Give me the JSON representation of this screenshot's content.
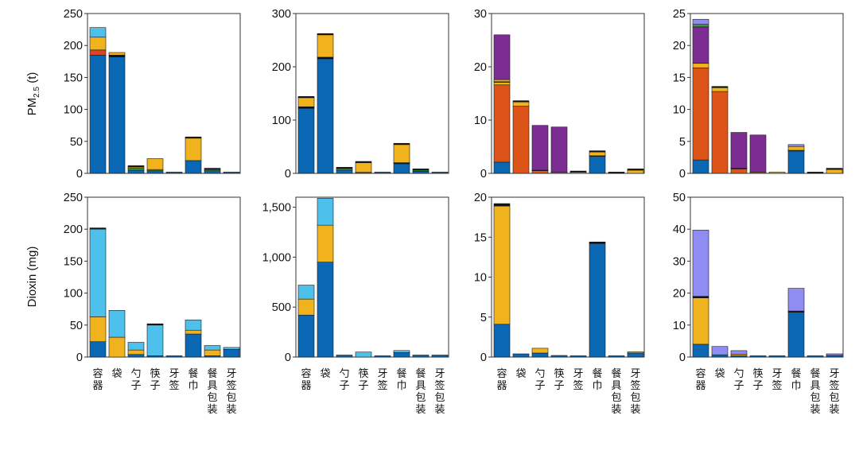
{
  "colors": {
    "dark_blue": "#0a67b3",
    "light_blue": "#4ec0ec",
    "orange": "#f0b21d",
    "red_orange": "#dd5418",
    "red": "#d9452b",
    "green": "#3d9a3a",
    "purple": "#7c2d92",
    "lavender": "#8f8df2",
    "black": "#111111"
  },
  "y_labels": {
    "row1_pre": "PM",
    "row1_sub": "2.5",
    "row1_post": " (t)",
    "row2": "Dioxin (mg)"
  },
  "categories": [
    "容器",
    "袋",
    "勺子",
    "筷子",
    "牙签",
    "餐巾",
    "餐具包装",
    "牙签包装"
  ],
  "chart_data": [
    {
      "type": "bar",
      "stacked": true,
      "row": 1,
      "col": 1,
      "ylim": [
        0,
        250
      ],
      "yticks": [
        "0",
        "50",
        "100",
        "150",
        "200",
        "250"
      ],
      "ytick_values": [
        0,
        50,
        100,
        150,
        200,
        250
      ],
      "stacks": [
        [
          [
            "dark_blue",
            185
          ],
          [
            "red",
            8
          ],
          [
            "orange",
            20
          ],
          [
            "light_blue",
            15
          ]
        ],
        [
          [
            "dark_blue",
            182
          ],
          [
            "black",
            3
          ],
          [
            "orange",
            4
          ]
        ],
        [
          [
            "dark_blue",
            5
          ],
          [
            "green",
            3
          ],
          [
            "orange",
            2
          ],
          [
            "black",
            1
          ]
        ],
        [
          [
            "dark_blue",
            4
          ],
          [
            "green",
            2
          ],
          [
            "orange",
            17
          ]
        ],
        [
          [
            "dark_blue",
            1
          ]
        ],
        [
          [
            "dark_blue",
            20
          ],
          [
            "orange",
            35
          ],
          [
            "black",
            1
          ]
        ],
        [
          [
            "dark_blue",
            4
          ],
          [
            "green",
            2
          ],
          [
            "black",
            1
          ]
        ],
        [
          [
            "dark_blue",
            1
          ]
        ]
      ]
    },
    {
      "type": "bar",
      "stacked": true,
      "row": 1,
      "col": 2,
      "ylim": [
        0,
        300
      ],
      "yticks": [
        "0",
        "100",
        "200",
        "300"
      ],
      "ytick_values": [
        0,
        100,
        200,
        300
      ],
      "stacks": [
        [
          [
            "dark_blue",
            122
          ],
          [
            "black",
            3
          ],
          [
            "orange",
            17
          ],
          [
            "black",
            2
          ]
        ],
        [
          [
            "dark_blue",
            215
          ],
          [
            "black",
            3
          ],
          [
            "orange",
            42
          ],
          [
            "black",
            2
          ]
        ],
        [
          [
            "dark_blue",
            6
          ],
          [
            "green",
            3
          ],
          [
            "black",
            2
          ]
        ],
        [
          [
            "dark_blue",
            2
          ],
          [
            "orange",
            18
          ],
          [
            "black",
            1
          ]
        ],
        [
          [
            "dark_blue",
            1
          ]
        ],
        [
          [
            "dark_blue",
            18
          ],
          [
            "black",
            2
          ],
          [
            "orange",
            34
          ],
          [
            "black",
            1
          ]
        ],
        [
          [
            "dark_blue",
            4
          ],
          [
            "green",
            2
          ],
          [
            "black",
            1
          ]
        ],
        [
          [
            "dark_blue",
            1
          ]
        ]
      ]
    },
    {
      "type": "bar",
      "stacked": true,
      "row": 1,
      "col": 3,
      "ylim": [
        0,
        30
      ],
      "yticks": [
        "0",
        "10",
        "20",
        "30"
      ],
      "ytick_values": [
        0,
        10,
        20,
        30
      ],
      "stacks": [
        [
          [
            "dark_blue",
            2.1
          ],
          [
            "red_orange",
            14.5
          ],
          [
            "orange",
            0.5
          ],
          [
            "black",
            0.1
          ],
          [
            "orange",
            0.4
          ],
          [
            "purple",
            8.4
          ]
        ],
        [
          [
            "red_orange",
            12.6
          ],
          [
            "orange",
            0.8
          ],
          [
            "black",
            0.1
          ]
        ],
        [
          [
            "red_orange",
            0.5
          ],
          [
            "black",
            0.1
          ],
          [
            "purple",
            8.4
          ]
        ],
        [
          [
            "red_orange",
            0.2
          ],
          [
            "purple",
            8.5
          ]
        ],
        [
          [
            "orange",
            0.2
          ],
          [
            "black",
            0.1
          ]
        ],
        [
          [
            "dark_blue",
            3.2
          ],
          [
            "black",
            0.1
          ],
          [
            "orange",
            0.7
          ],
          [
            "black",
            0.1
          ]
        ],
        [
          [
            "black",
            0.1
          ]
        ],
        [
          [
            "orange",
            0.6
          ],
          [
            "black",
            0.1
          ]
        ]
      ]
    },
    {
      "type": "bar",
      "stacked": true,
      "row": 1,
      "col": 4,
      "ylim": [
        0,
        25
      ],
      "yticks": [
        "0",
        "5",
        "10",
        "15",
        "20",
        "25"
      ],
      "ytick_values": [
        0,
        5,
        10,
        15,
        20,
        25
      ],
      "stacks": [
        [
          [
            "dark_blue",
            2.1
          ],
          [
            "red_orange",
            14.4
          ],
          [
            "orange",
            0.7
          ],
          [
            "purple",
            5.7
          ],
          [
            "green",
            0.4
          ],
          [
            "lavender",
            0.8
          ]
        ],
        [
          [
            "red_orange",
            12.8
          ],
          [
            "orange",
            0.6
          ],
          [
            "black",
            0.1
          ]
        ],
        [
          [
            "red_orange",
            0.7
          ],
          [
            "black",
            0.1
          ],
          [
            "purple",
            5.6
          ]
        ],
        [
          [
            "red_orange",
            0.2
          ],
          [
            "purple",
            5.8
          ]
        ],
        [
          [
            "orange",
            0.2
          ]
        ],
        [
          [
            "dark_blue",
            3.5
          ],
          [
            "black",
            0.1
          ],
          [
            "orange",
            0.6
          ],
          [
            "lavender",
            0.3
          ]
        ],
        [
          [
            "black",
            0.1
          ]
        ],
        [
          [
            "orange",
            0.6
          ],
          [
            "black",
            0.1
          ]
        ]
      ]
    },
    {
      "type": "bar",
      "stacked": true,
      "row": 2,
      "col": 1,
      "ylim": [
        0,
        250
      ],
      "yticks": [
        "0",
        "50",
        "100",
        "150",
        "200",
        "250"
      ],
      "ytick_values": [
        0,
        50,
        100,
        150,
        200,
        250
      ],
      "stacks": [
        [
          [
            "dark_blue",
            24
          ],
          [
            "orange",
            39
          ],
          [
            "light_blue",
            137
          ],
          [
            "black",
            2
          ]
        ],
        [
          [
            "orange",
            31
          ],
          [
            "light_blue",
            42
          ]
        ],
        [
          [
            "dark_blue",
            4
          ],
          [
            "orange",
            7
          ],
          [
            "light_blue",
            12
          ]
        ],
        [
          [
            "dark_blue",
            2
          ],
          [
            "light_blue",
            48
          ],
          [
            "black",
            1
          ]
        ],
        [
          [
            "dark_blue",
            1
          ]
        ],
        [
          [
            "dark_blue",
            36
          ],
          [
            "orange",
            6
          ],
          [
            "light_blue",
            16
          ]
        ],
        [
          [
            "dark_blue",
            2
          ],
          [
            "orange",
            9
          ],
          [
            "light_blue",
            7
          ]
        ],
        [
          [
            "dark_blue",
            12
          ],
          [
            "light_blue",
            3
          ]
        ]
      ]
    },
    {
      "type": "bar",
      "stacked": true,
      "row": 2,
      "col": 2,
      "ylim": [
        0,
        1600
      ],
      "yticks": [
        "0",
        "500",
        "1,000",
        "1,500"
      ],
      "ytick_values": [
        0,
        500,
        1000,
        1500
      ],
      "stacks": [
        [
          [
            "dark_blue",
            420
          ],
          [
            "orange",
            160
          ],
          [
            "light_blue",
            140
          ]
        ],
        [
          [
            "dark_blue",
            950
          ],
          [
            "orange",
            370
          ],
          [
            "light_blue",
            270
          ]
        ],
        [
          [
            "dark_blue",
            20
          ]
        ],
        [
          [
            "light_blue",
            50
          ]
        ],
        [
          [
            "dark_blue",
            5
          ]
        ],
        [
          [
            "dark_blue",
            45
          ],
          [
            "light_blue",
            20
          ]
        ],
        [
          [
            "dark_blue",
            20
          ]
        ],
        [
          [
            "dark_blue",
            20
          ]
        ]
      ]
    },
    {
      "type": "bar",
      "stacked": true,
      "row": 2,
      "col": 3,
      "ylim": [
        0,
        20
      ],
      "yticks": [
        "0",
        "5",
        "10",
        "15",
        "20"
      ],
      "ytick_values": [
        0,
        5,
        10,
        15,
        20
      ],
      "stacks": [
        [
          [
            "dark_blue",
            4.1
          ],
          [
            "orange",
            14.8
          ],
          [
            "black",
            0.3
          ]
        ],
        [
          [
            "dark_blue",
            0.4
          ]
        ],
        [
          [
            "dark_blue",
            0.5
          ],
          [
            "orange",
            0.6
          ]
        ],
        [
          [
            "dark_blue",
            0.2
          ]
        ],
        [
          [
            "dark_blue",
            0.1
          ]
        ],
        [
          [
            "dark_blue",
            14.2
          ],
          [
            "black",
            0.2
          ]
        ],
        [
          [
            "dark_blue",
            0.05
          ]
        ],
        [
          [
            "dark_blue",
            0.5
          ],
          [
            "orange",
            0.1
          ]
        ]
      ]
    },
    {
      "type": "bar",
      "stacked": true,
      "row": 2,
      "col": 4,
      "ylim": [
        0,
        50
      ],
      "yticks": [
        "0",
        "10",
        "20",
        "30",
        "40",
        "50"
      ],
      "ytick_values": [
        0,
        10,
        20,
        30,
        40,
        50
      ],
      "stacks": [
        [
          [
            "dark_blue",
            4
          ],
          [
            "orange",
            14.5
          ],
          [
            "black",
            0.5
          ],
          [
            "lavender",
            20.7
          ]
        ],
        [
          [
            "dark_blue",
            0.7
          ],
          [
            "lavender",
            2.6
          ]
        ],
        [
          [
            "dark_blue",
            0.4
          ],
          [
            "orange",
            0.5
          ],
          [
            "lavender",
            1.1
          ]
        ],
        [
          [
            "dark_blue",
            0.3
          ]
        ],
        [
          [
            "dark_blue",
            0.1
          ]
        ],
        [
          [
            "dark_blue",
            14
          ],
          [
            "black",
            0.4
          ],
          [
            "lavender",
            7.1
          ]
        ],
        [
          [
            "dark_blue",
            0.1
          ]
        ],
        [
          [
            "dark_blue",
            0.5
          ],
          [
            "lavender",
            0.5
          ]
        ]
      ]
    }
  ]
}
